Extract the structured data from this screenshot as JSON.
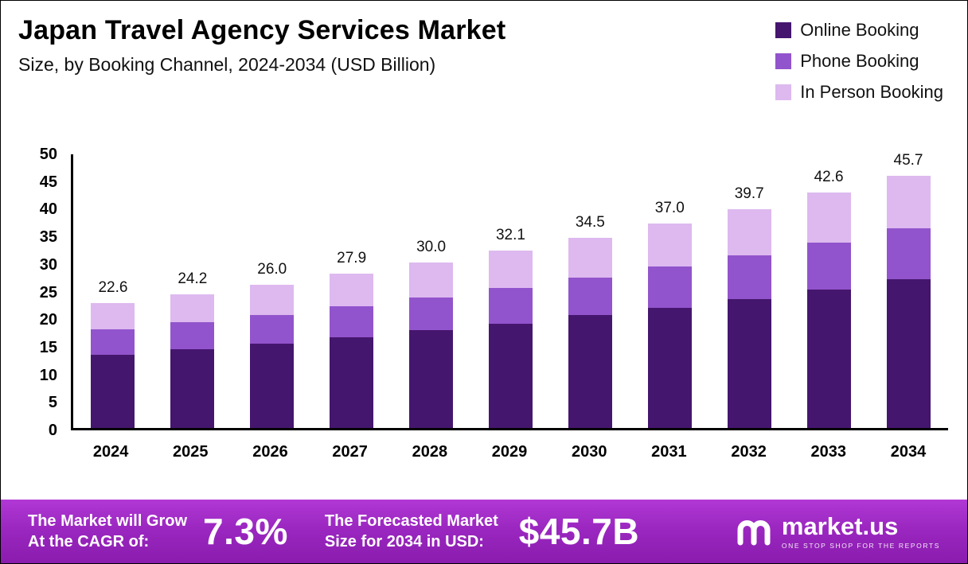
{
  "header": {
    "title": "Japan Travel Agency Services Market",
    "subtitle": "Size, by Booking Channel, 2024-2034 (USD Billion)"
  },
  "legend": [
    {
      "label": "Online Booking",
      "color": "#45166e"
    },
    {
      "label": "Phone Booking",
      "color": "#9254cc"
    },
    {
      "label": "In Person Booking",
      "color": "#ddb9ef"
    }
  ],
  "chart_data": {
    "type": "bar",
    "stacked": true,
    "title": "Japan Travel Agency Services Market Size, by Booking Channel, 2024-2034 (USD Billion)",
    "categories": [
      "2024",
      "2025",
      "2026",
      "2027",
      "2028",
      "2029",
      "2030",
      "2031",
      "2032",
      "2033",
      "2034"
    ],
    "totals": [
      22.6,
      24.2,
      26.0,
      27.9,
      30.0,
      32.1,
      34.5,
      37.0,
      39.7,
      42.6,
      45.7
    ],
    "series": [
      {
        "name": "Online Booking",
        "color": "#45166e",
        "values": [
          13.3,
          14.3,
          15.3,
          16.5,
          17.7,
          18.9,
          20.4,
          21.8,
          23.4,
          25.1,
          27.0
        ]
      },
      {
        "name": "Phone Booking",
        "color": "#9254cc",
        "values": [
          4.5,
          4.8,
          5.2,
          5.6,
          6.0,
          6.4,
          6.9,
          7.4,
          7.9,
          8.5,
          9.2
        ]
      },
      {
        "name": "In Person Booking",
        "color": "#ddb9ef",
        "values": [
          4.8,
          5.1,
          5.5,
          5.8,
          6.3,
          6.8,
          7.2,
          7.8,
          8.4,
          9.0,
          9.5
        ]
      }
    ],
    "xlabel": "",
    "ylabel": "",
    "ylim": [
      0,
      50
    ],
    "yticks": [
      0,
      5,
      10,
      15,
      20,
      25,
      30,
      35,
      40,
      45,
      50
    ],
    "grid": false,
    "legend_position": "top-right"
  },
  "banner": {
    "cagr_label_line1": "The Market will Grow",
    "cagr_label_line2": "At the CAGR of:",
    "cagr_value": "7.3%",
    "forecast_label_line1": "The Forecasted Market",
    "forecast_label_line2": "Size for 2034 in USD:",
    "forecast_value": "$45.7B",
    "brand": "market.us",
    "brand_tagline": "ONE STOP SHOP FOR THE REPORTS"
  }
}
